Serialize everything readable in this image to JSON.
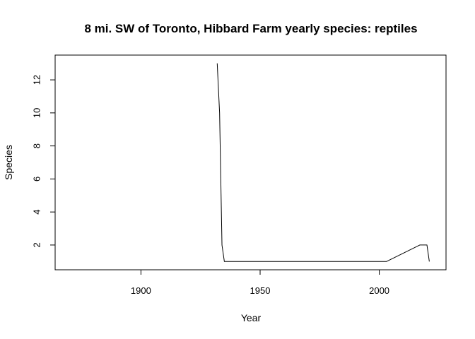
{
  "chart_data": {
    "type": "line",
    "title": "8 mi. SW of Toronto, Hibbard Farm yearly species: reptiles",
    "xlabel": "Year",
    "ylabel": "Species",
    "xlim": [
      1864,
      2028
    ],
    "ylim": [
      0.5,
      13.5
    ],
    "xticks": [
      1900,
      1950,
      2000
    ],
    "yticks": [
      2,
      4,
      6,
      8,
      10,
      12
    ],
    "grid": false,
    "legend": "none",
    "line_color": "#000000",
    "series": [
      {
        "x": [
          1932,
          1933,
          1934,
          1935,
          1940,
          1950,
          1960,
          1970,
          1980,
          1990,
          2000,
          2003,
          2017,
          2020,
          2021
        ],
        "y": [
          13,
          10,
          2,
          1,
          1,
          1,
          1,
          1,
          1,
          1,
          1,
          1,
          2,
          2,
          1
        ]
      }
    ],
    "baseline": {
      "x": [
        1864,
        2021
      ],
      "y": [
        0.5,
        0.5
      ]
    }
  }
}
